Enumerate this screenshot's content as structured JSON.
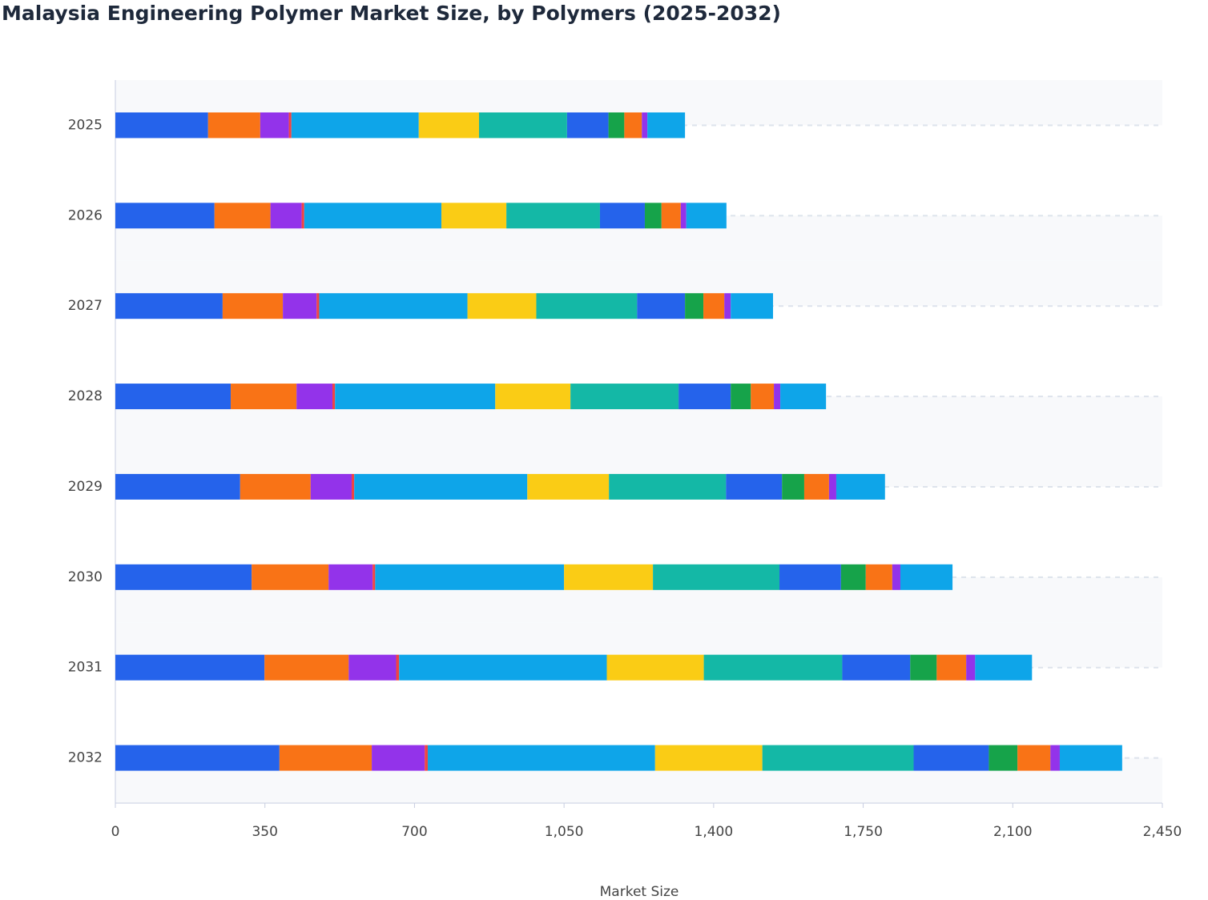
{
  "chart_data": {
    "type": "stacked-bar-horizontal",
    "title": "Malaysia Engineering Polymer Market Size, by Polymers (2025-2032)",
    "x_label": "Market Size",
    "categories": [
      "2025",
      "2026",
      "2027",
      "2028",
      "2029",
      "2030",
      "2031",
      "2032"
    ],
    "xlim": [
      0,
      2450
    ],
    "xticks": [
      0,
      350,
      700,
      {
        "value": 1050,
        "label": "1,050"
      },
      {
        "value": 1400,
        "label": "1,400"
      },
      {
        "value": 1750,
        "label": "1,750"
      },
      {
        "value": 2100,
        "label": "2,100"
      },
      {
        "value": 2450,
        "label": "2,450"
      }
    ],
    "series": [
      {
        "color": "#2563eb",
        "values": [
          217,
          232,
          251,
          270,
          292,
          319,
          349,
          384
        ]
      },
      {
        "color": "#f97316",
        "values": [
          122,
          131,
          141,
          154,
          165,
          180,
          197,
          216
        ]
      },
      {
        "color": "#9333ea",
        "values": [
          67,
          73,
          79,
          84,
          96,
          103,
          111,
          124
        ]
      },
      {
        "color": "#ef4444",
        "values": [
          6,
          6,
          6,
          6,
          6,
          6,
          7,
          7
        ]
      },
      {
        "color": "#0ea5e9",
        "values": [
          298,
          321,
          347,
          375,
          405,
          442,
          486,
          532
        ]
      },
      {
        "color": "#facc15",
        "values": [
          141,
          152,
          161,
          176,
          191,
          208,
          227,
          251
        ]
      },
      {
        "color": "#14b8a6",
        "values": [
          206,
          219,
          236,
          253,
          274,
          296,
          324,
          354
        ]
      },
      {
        "color": "#2563eb",
        "values": [
          97,
          105,
          112,
          122,
          131,
          144,
          159,
          176
        ]
      },
      {
        "color": "#16a34a",
        "values": [
          37,
          39,
          43,
          47,
          52,
          58,
          62,
          67
        ]
      },
      {
        "color": "#f97316",
        "values": [
          41,
          45,
          49,
          54,
          58,
          62,
          69,
          77
        ]
      },
      {
        "color": "#9333ea",
        "values": [
          13,
          13,
          15,
          15,
          17,
          19,
          21,
          22
        ]
      },
      {
        "color": "#0ea5e9",
        "values": [
          88,
          94,
          99,
          107,
          114,
          122,
          133,
          146
        ]
      }
    ]
  }
}
